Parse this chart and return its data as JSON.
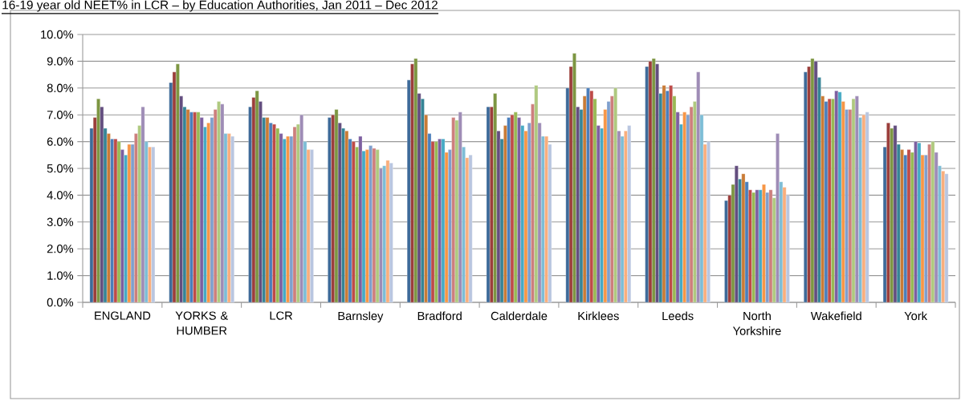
{
  "chart_data": {
    "type": "bar",
    "title": "16-19 year old NEET% in LCR – by Education Authorities, Jan 2011 – Dec 2012",
    "categories": [
      "ENGLAND",
      "YORKS & HUMBER",
      "LCR",
      "Barnsley",
      "Bradford",
      "Calderdale",
      "Kirklees",
      "Leeds",
      "North Yorkshire",
      "Wakefield",
      "York"
    ],
    "series": [
      {
        "color": "#3d6a99",
        "values": [
          6.5,
          8.2,
          7.3,
          6.9,
          8.3,
          7.3,
          8.0,
          8.8,
          3.8,
          8.6,
          5.8
        ]
      },
      {
        "color": "#9b3e3b",
        "values": [
          6.9,
          8.6,
          7.65,
          7.0,
          8.9,
          7.3,
          8.8,
          9.0,
          4.0,
          8.8,
          6.7
        ]
      },
      {
        "color": "#7d9642",
        "values": [
          7.6,
          8.9,
          7.9,
          7.2,
          9.1,
          7.8,
          9.3,
          9.1,
          4.4,
          9.1,
          6.5
        ]
      },
      {
        "color": "#634e7f",
        "values": [
          7.3,
          7.7,
          7.5,
          6.7,
          7.8,
          6.4,
          7.3,
          8.9,
          5.1,
          9.0,
          6.6
        ]
      },
      {
        "color": "#368496",
        "values": [
          6.5,
          7.3,
          6.9,
          6.5,
          7.6,
          6.1,
          7.2,
          7.8,
          4.6,
          8.4,
          5.9
        ]
      },
      {
        "color": "#c97b36",
        "values": [
          6.3,
          7.2,
          6.9,
          6.4,
          7.0,
          6.6,
          7.7,
          8.1,
          4.8,
          7.7,
          5.7
        ]
      },
      {
        "color": "#4a7ebb",
        "values": [
          6.1,
          7.1,
          6.7,
          6.1,
          6.3,
          6.9,
          8.0,
          7.9,
          4.5,
          7.5,
          5.5
        ]
      },
      {
        "color": "#be4b48",
        "values": [
          6.1,
          7.1,
          6.65,
          6.0,
          6.0,
          7.0,
          7.9,
          8.1,
          4.2,
          7.6,
          5.7
        ]
      },
      {
        "color": "#98b954",
        "values": [
          6.0,
          7.1,
          6.5,
          5.8,
          6.0,
          7.1,
          7.6,
          7.7,
          4.1,
          7.6,
          5.6
        ]
      },
      {
        "color": "#7d5fa0",
        "values": [
          5.7,
          6.9,
          6.3,
          6.2,
          6.1,
          6.9,
          6.6,
          7.1,
          4.2,
          7.9,
          6.0
        ]
      },
      {
        "color": "#46aac5",
        "values": [
          5.5,
          6.55,
          6.1,
          5.65,
          6.1,
          6.6,
          6.5,
          6.65,
          4.2,
          7.85,
          5.95
        ]
      },
      {
        "color": "#f79646",
        "values": [
          5.9,
          6.7,
          6.2,
          5.7,
          5.6,
          6.4,
          7.2,
          7.1,
          4.4,
          7.5,
          5.5
        ]
      },
      {
        "color": "#7f9fcd",
        "values": [
          5.9,
          6.9,
          6.2,
          5.85,
          5.7,
          6.7,
          7.5,
          7.0,
          4.1,
          7.2,
          5.5
        ]
      },
      {
        "color": "#cd7f7d",
        "values": [
          6.3,
          7.2,
          6.55,
          5.75,
          6.9,
          7.4,
          7.7,
          7.3,
          4.2,
          7.2,
          5.9
        ]
      },
      {
        "color": "#afc97f",
        "values": [
          6.6,
          7.5,
          6.65,
          5.7,
          6.8,
          8.1,
          8.0,
          7.5,
          3.9,
          7.6,
          6.0
        ]
      },
      {
        "color": "#9e8cb6",
        "values": [
          7.3,
          7.4,
          7.0,
          5.0,
          7.1,
          6.7,
          6.4,
          8.6,
          6.3,
          7.7,
          5.6
        ]
      },
      {
        "color": "#7dbdd6",
        "values": [
          6.0,
          6.3,
          6.0,
          5.1,
          5.8,
          6.2,
          6.2,
          7.0,
          4.5,
          6.9,
          5.1
        ]
      },
      {
        "color": "#f9ae7d",
        "values": [
          5.8,
          6.3,
          5.7,
          5.3,
          5.4,
          6.2,
          6.4,
          5.9,
          4.3,
          7.0,
          4.9
        ]
      },
      {
        "color": "#b9c6e0",
        "values": [
          5.8,
          6.2,
          5.7,
          5.2,
          5.5,
          5.9,
          6.6,
          6.0,
          4.0,
          7.1,
          4.8
        ]
      }
    ],
    "ylim": [
      0,
      10
    ],
    "yticks": [
      {
        "value": 0,
        "label": "0.0%"
      },
      {
        "value": 1,
        "label": "1.0%"
      },
      {
        "value": 2,
        "label": "2.0%"
      },
      {
        "value": 3,
        "label": "3.0%"
      },
      {
        "value": 4,
        "label": "4.0%"
      },
      {
        "value": 5,
        "label": "5.0%"
      },
      {
        "value": 6,
        "label": "6.0%"
      },
      {
        "value": 7,
        "label": "7.0%"
      },
      {
        "value": 8,
        "label": "8.0%"
      },
      {
        "value": 9,
        "label": "9.0%"
      },
      {
        "value": 10,
        "label": "10.0%"
      }
    ],
    "grid": "y"
  }
}
